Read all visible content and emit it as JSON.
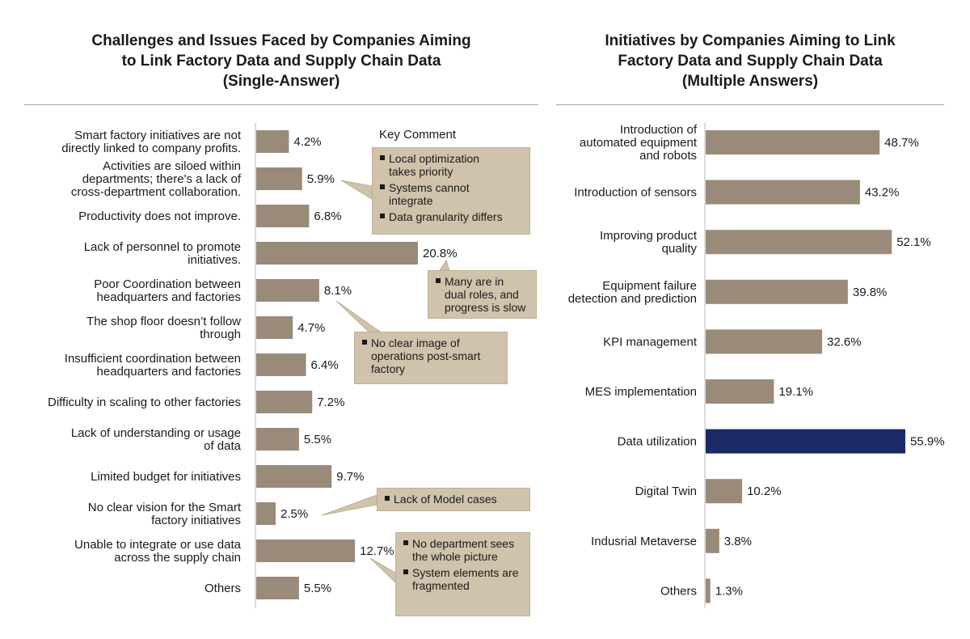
{
  "chart_data": [
    {
      "type": "bar",
      "orientation": "horizontal",
      "title": "Challenges and Issues Faced by Companies Aiming\nto Link Factory Data and Supply Chain Data\n(Single-Answer)",
      "unit": "%",
      "xlim": [
        0,
        25
      ],
      "categories": [
        "Smart factory initiatives are not\ndirectly linked to company profits.",
        "Activities are siloed within\ndepartments; there's a lack of\ncross-department collaboration.",
        "Productivity does not improve.",
        "Lack of personnel to promote\ninitiatives.",
        "Poor Coordination between\nheadquarters and factories",
        "The shop floor doesn’t follow\nthrough",
        "Insufficient coordination between\nheadquarters and factories",
        "Difficulty in scaling to other factories",
        "Lack of understanding or usage\nof data",
        "Limited budget for initiatives",
        "No clear vision for the Smart\nfactory initiatives",
        "Unable to integrate or use data\nacross the supply chain",
        "Others"
      ],
      "values": [
        4.2,
        5.9,
        6.8,
        20.8,
        8.1,
        4.7,
        6.4,
        7.2,
        5.5,
        9.7,
        2.5,
        12.7,
        5.5
      ],
      "value_labels": [
        "4.2%",
        "5.9%",
        "6.8%",
        "20.8%",
        "8.1%",
        "4.7%",
        "6.4%",
        "7.2%",
        "5.5%",
        "9.7%",
        "2.5%",
        "12.7%",
        "5.5%"
      ],
      "bar_color": "#9a8a7a",
      "key_comment_label": "Key Comment",
      "callouts": [
        {
          "target_index": 1,
          "items": [
            "Local optimization\ntakes priority",
            "Systems cannot\nintegrate",
            "Data granularity differs"
          ]
        },
        {
          "target_index": 3,
          "items": [
            "Many are in\ndual roles,  and\nprogress is slow"
          ]
        },
        {
          "target_index": 4,
          "items": [
            "No clear image of\noperations post-smart\nfactory"
          ]
        },
        {
          "target_index": 10,
          "items": [
            "Lack of Model cases"
          ]
        },
        {
          "target_index": 11,
          "items": [
            "No department sees\nthe whole picture",
            "System elements are\nfragmented"
          ]
        }
      ]
    },
    {
      "type": "bar",
      "orientation": "horizontal",
      "title": "Initiatives by Companies Aiming to Link\nFactory Data and Supply Chain Data\n(Multiple Answers)",
      "unit": "%",
      "xlim": [
        0,
        60
      ],
      "categories": [
        "Introduction of\nautomated equipment\nand robots",
        "Introduction of sensors",
        "Improving product\nquality",
        "Equipment failure\ndetection and prediction",
        "KPI management",
        "MES implementation",
        "Data utilization",
        "Digital Twin",
        "Indusrial Metaverse",
        "Others"
      ],
      "values": [
        48.7,
        43.2,
        52.1,
        39.8,
        32.6,
        19.1,
        55.9,
        10.2,
        3.8,
        1.3
      ],
      "value_labels": [
        "48.7%",
        "43.2%",
        "52.1%",
        "39.8%",
        "32.6%",
        "19.1%",
        "55.9%",
        "10.2%",
        "3.8%",
        "1.3%"
      ],
      "bar_color": "#9a8a7a",
      "highlight_index": 6,
      "highlight_color": "#1b2a66"
    }
  ]
}
